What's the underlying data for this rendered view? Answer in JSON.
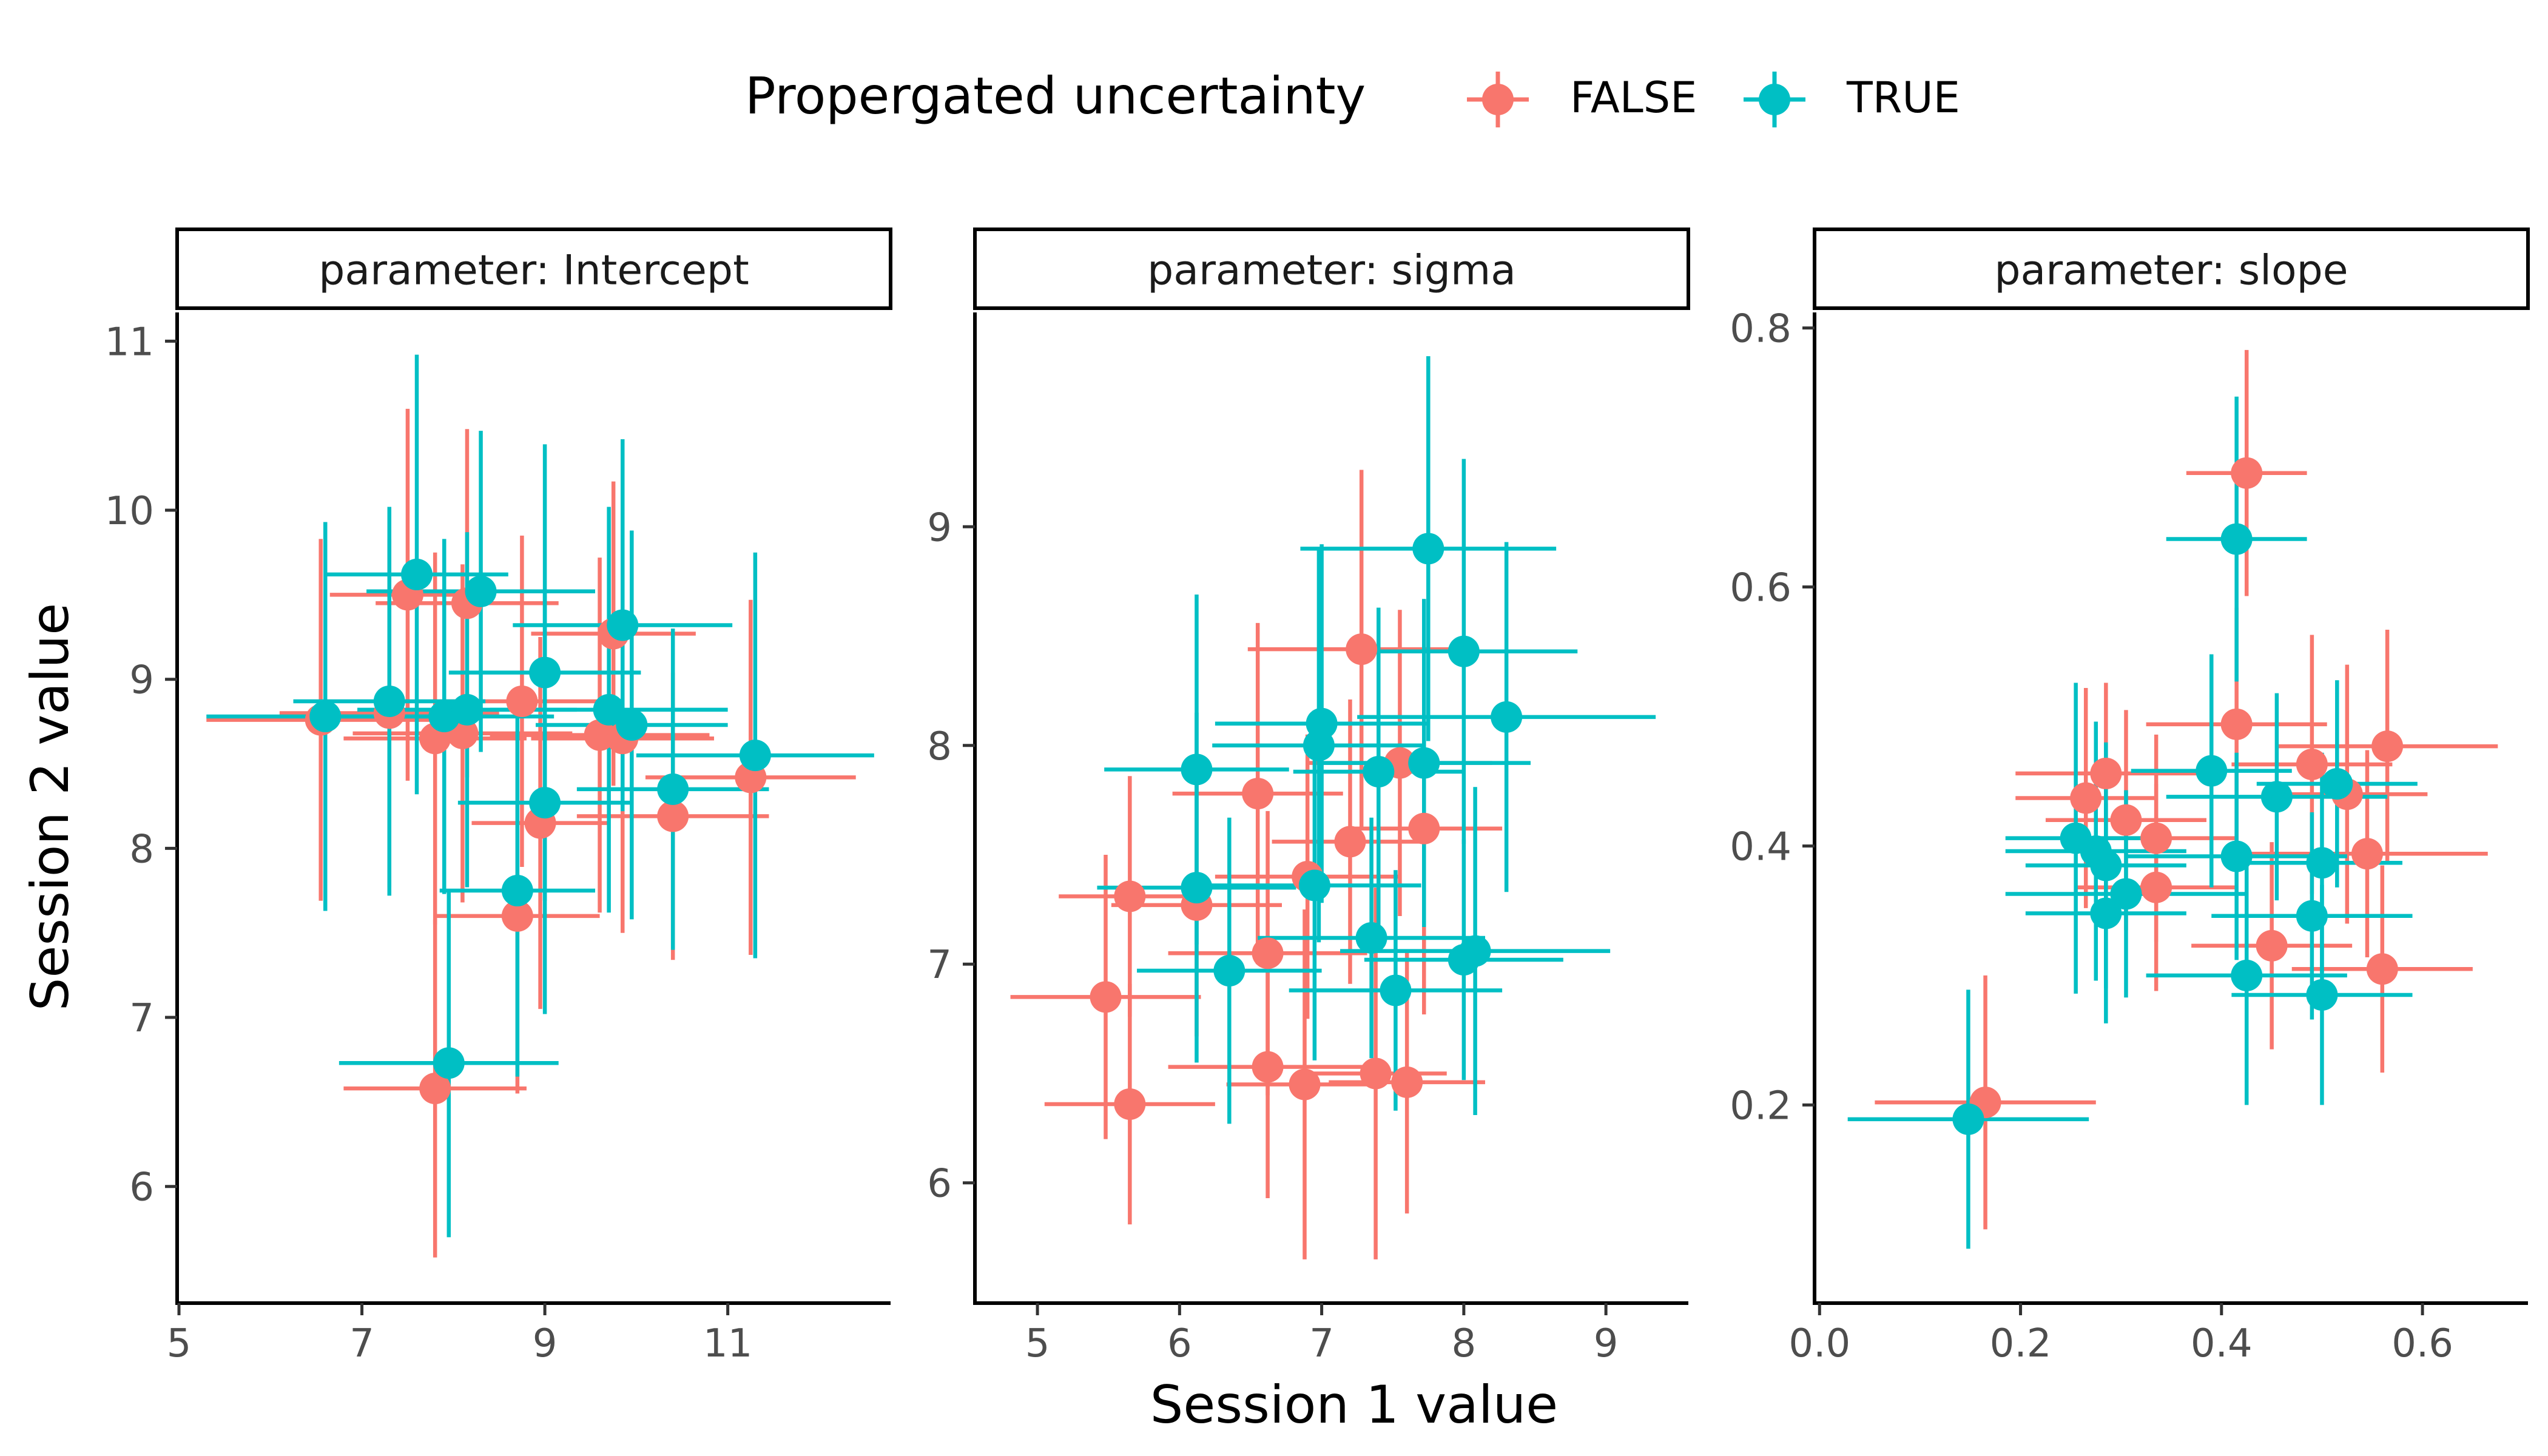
{
  "chart_data": {
    "type": "scatter",
    "legend": {
      "title": "Propergated uncertainty",
      "placement": "top",
      "entries": [
        {
          "label": "FALSE",
          "color": "#F8766D"
        },
        {
          "label": "TRUE",
          "color": "#00BFC4"
        }
      ]
    },
    "xlabel": "Session 1 value",
    "ylabel": "Session 2 value",
    "grid": false,
    "facet_strip_prefix": "parameter: ",
    "panels": [
      {
        "title": "parameter: Intercept",
        "xlim": [
          4.98,
          12.78
        ],
        "ylim": [
          5.31,
          11.17
        ],
        "x_ticks": [
          5,
          7,
          9,
          11
        ],
        "x_tick_labels": [
          "5",
          "7",
          "9",
          "11"
        ],
        "y_ticks": [
          6,
          7,
          8,
          9,
          10,
          11
        ],
        "y_tick_labels": [
          "6",
          "7",
          "8",
          "9",
          "10",
          "11"
        ],
        "series": [
          {
            "name": "FALSE",
            "color": "#F8766D",
            "points": [
              {
                "x": 6.55,
                "y": 8.76,
                "xerr": 1.25,
                "yerr": 1.07
              },
              {
                "x": 7.3,
                "y": 8.8,
                "xerr": 1.2,
                "yerr": 1.03
              },
              {
                "x": 7.5,
                "y": 9.5,
                "xerr": 0.85,
                "yerr": 1.1
              },
              {
                "x": 7.8,
                "y": 8.65,
                "xerr": 1.0,
                "yerr": 1.1
              },
              {
                "x": 8.1,
                "y": 8.68,
                "xerr": 1.2,
                "yerr": 1.0
              },
              {
                "x": 8.15,
                "y": 9.45,
                "xerr": 1.0,
                "yerr": 1.03
              },
              {
                "x": 8.75,
                "y": 8.87,
                "xerr": 0.9,
                "yerr": 0.98
              },
              {
                "x": 8.7,
                "y": 7.6,
                "xerr": 0.9,
                "yerr": 1.05
              },
              {
                "x": 8.95,
                "y": 8.15,
                "xerr": 0.75,
                "yerr": 1.1
              },
              {
                "x": 9.6,
                "y": 8.67,
                "xerr": 1.2,
                "yerr": 1.05
              },
              {
                "x": 9.75,
                "y": 9.27,
                "xerr": 0.9,
                "yerr": 0.9
              },
              {
                "x": 9.85,
                "y": 8.65,
                "xerr": 1.0,
                "yerr": 1.15
              },
              {
                "x": 7.8,
                "y": 6.58,
                "xerr": 1.0,
                "yerr": 1.0
              },
              {
                "x": 10.4,
                "y": 8.19,
                "xerr": 1.05,
                "yerr": 0.85
              },
              {
                "x": 11.25,
                "y": 8.42,
                "xerr": 1.15,
                "yerr": 1.05
              }
            ]
          },
          {
            "name": "TRUE",
            "color": "#00BFC4",
            "points": [
              {
                "x": 6.6,
                "y": 8.78,
                "xerr": 1.3,
                "yerr": 1.15
              },
              {
                "x": 7.3,
                "y": 8.87,
                "xerr": 1.05,
                "yerr": 1.15
              },
              {
                "x": 7.6,
                "y": 9.62,
                "xerr": 1.0,
                "yerr": 1.3
              },
              {
                "x": 7.9,
                "y": 8.78,
                "xerr": 1.2,
                "yerr": 1.05
              },
              {
                "x": 8.15,
                "y": 8.82,
                "xerr": 1.2,
                "yerr": 1.05
              },
              {
                "x": 8.3,
                "y": 9.52,
                "xerr": 1.25,
                "yerr": 0.95
              },
              {
                "x": 9.0,
                "y": 9.04,
                "xerr": 1.05,
                "yerr": 1.35
              },
              {
                "x": 8.7,
                "y": 7.75,
                "xerr": 0.85,
                "yerr": 1.1
              },
              {
                "x": 9.0,
                "y": 8.27,
                "xerr": 0.95,
                "yerr": 1.25
              },
              {
                "x": 9.7,
                "y": 8.82,
                "xerr": 1.3,
                "yerr": 1.2
              },
              {
                "x": 9.85,
                "y": 9.32,
                "xerr": 1.2,
                "yerr": 1.1
              },
              {
                "x": 9.95,
                "y": 8.73,
                "xerr": 1.05,
                "yerr": 1.15
              },
              {
                "x": 7.95,
                "y": 6.73,
                "xerr": 1.2,
                "yerr": 1.03
              },
              {
                "x": 10.4,
                "y": 8.35,
                "xerr": 1.05,
                "yerr": 0.95
              },
              {
                "x": 11.3,
                "y": 8.55,
                "xerr": 1.3,
                "yerr": 1.2
              }
            ]
          }
        ]
      },
      {
        "title": "parameter: sigma",
        "xlim": [
          4.56,
          9.58
        ],
        "ylim": [
          5.45,
          9.98
        ],
        "x_ticks": [
          5,
          6,
          7,
          8,
          9
        ],
        "x_tick_labels": [
          "5",
          "6",
          "7",
          "8",
          "9"
        ],
        "y_ticks": [
          6,
          7,
          8,
          9
        ],
        "y_tick_labels": [
          "6",
          "7",
          "8",
          "9"
        ],
        "series": [
          {
            "name": "FALSE",
            "color": "#F8766D",
            "points": [
              {
                "x": 5.48,
                "y": 6.85,
                "xerr": 0.67,
                "yerr": 0.65
              },
              {
                "x": 5.65,
                "y": 6.36,
                "xerr": 0.6,
                "yerr": 0.55
              },
              {
                "x": 5.65,
                "y": 7.31,
                "xerr": 0.5,
                "yerr": 0.55
              },
              {
                "x": 6.12,
                "y": 7.27,
                "xerr": 0.6,
                "yerr": 0.6
              },
              {
                "x": 6.55,
                "y": 7.78,
                "xerr": 0.6,
                "yerr": 0.78
              },
              {
                "x": 6.62,
                "y": 7.05,
                "xerr": 0.7,
                "yerr": 0.65
              },
              {
                "x": 6.62,
                "y": 6.53,
                "xerr": 0.7,
                "yerr": 0.6
              },
              {
                "x": 6.88,
                "y": 6.45,
                "xerr": 0.55,
                "yerr": 0.8
              },
              {
                "x": 6.9,
                "y": 7.4,
                "xerr": 0.65,
                "yerr": 0.65
              },
              {
                "x": 7.2,
                "y": 7.56,
                "xerr": 0.55,
                "yerr": 0.65
              },
              {
                "x": 7.28,
                "y": 8.44,
                "xerr": 0.8,
                "yerr": 0.82
              },
              {
                "x": 7.38,
                "y": 6.5,
                "xerr": 0.5,
                "yerr": 0.85
              },
              {
                "x": 7.55,
                "y": 7.92,
                "xerr": 0.65,
                "yerr": 0.7
              },
              {
                "x": 7.6,
                "y": 6.46,
                "xerr": 0.55,
                "yerr": 0.6
              },
              {
                "x": 7.72,
                "y": 7.62,
                "xerr": 0.55,
                "yerr": 0.85
              }
            ]
          },
          {
            "name": "TRUE",
            "color": "#00BFC4",
            "points": [
              {
                "x": 6.12,
                "y": 7.35,
                "xerr": 0.7,
                "yerr": 0.8
              },
              {
                "x": 6.12,
                "y": 7.89,
                "xerr": 0.65,
                "yerr": 0.8
              },
              {
                "x": 6.35,
                "y": 6.97,
                "xerr": 0.65,
                "yerr": 0.7
              },
              {
                "x": 6.95,
                "y": 7.36,
                "xerr": 0.75,
                "yerr": 0.8
              },
              {
                "x": 6.98,
                "y": 8.0,
                "xerr": 0.75,
                "yerr": 0.9
              },
              {
                "x": 7.0,
                "y": 8.1,
                "xerr": 0.75,
                "yerr": 0.82
              },
              {
                "x": 7.35,
                "y": 7.12,
                "xerr": 0.8,
                "yerr": 0.55
              },
              {
                "x": 7.4,
                "y": 7.88,
                "xerr": 0.6,
                "yerr": 0.75
              },
              {
                "x": 7.52,
                "y": 6.88,
                "xerr": 0.75,
                "yerr": 0.55
              },
              {
                "x": 7.72,
                "y": 7.92,
                "xerr": 0.75,
                "yerr": 0.75
              },
              {
                "x": 7.75,
                "y": 8.9,
                "xerr": 0.9,
                "yerr": 0.88
              },
              {
                "x": 8.0,
                "y": 8.43,
                "xerr": 0.8,
                "yerr": 0.88
              },
              {
                "x": 8.0,
                "y": 7.02,
                "xerr": 0.7,
                "yerr": 0.55
              },
              {
                "x": 8.08,
                "y": 7.06,
                "xerr": 0.95,
                "yerr": 0.75
              },
              {
                "x": 8.3,
                "y": 8.13,
                "xerr": 1.05,
                "yerr": 0.8
              }
            ]
          }
        ]
      },
      {
        "title": "parameter: slope",
        "xlim": [
          -0.005,
          0.705
        ],
        "ylim": [
          0.047,
          0.812
        ],
        "x_ticks": [
          0.0,
          0.2,
          0.4,
          0.6
        ],
        "x_tick_labels": [
          "0.0",
          "0.2",
          "0.4",
          "0.6"
        ],
        "y_ticks": [
          0.2,
          0.4,
          0.6,
          0.8
        ],
        "y_tick_labels": [
          "0.2",
          "0.4",
          "0.6",
          "0.8"
        ],
        "series": [
          {
            "name": "FALSE",
            "color": "#F8766D",
            "points": [
              {
                "x": 0.165,
                "y": 0.202,
                "xerr": 0.11,
                "yerr": 0.098
              },
              {
                "x": 0.425,
                "y": 0.688,
                "xerr": 0.06,
                "yerr": 0.095
              },
              {
                "x": 0.265,
                "y": 0.437,
                "xerr": 0.07,
                "yerr": 0.085
              },
              {
                "x": 0.285,
                "y": 0.456,
                "xerr": 0.09,
                "yerr": 0.07
              },
              {
                "x": 0.305,
                "y": 0.42,
                "xerr": 0.08,
                "yerr": 0.085
              },
              {
                "x": 0.335,
                "y": 0.406,
                "xerr": 0.08,
                "yerr": 0.08
              },
              {
                "x": 0.335,
                "y": 0.368,
                "xerr": 0.08,
                "yerr": 0.08
              },
              {
                "x": 0.415,
                "y": 0.494,
                "xerr": 0.09,
                "yerr": 0.09
              },
              {
                "x": 0.45,
                "y": 0.323,
                "xerr": 0.08,
                "yerr": 0.08
              },
              {
                "x": 0.49,
                "y": 0.463,
                "xerr": 0.08,
                "yerr": 0.1
              },
              {
                "x": 0.525,
                "y": 0.44,
                "xerr": 0.08,
                "yerr": 0.1
              },
              {
                "x": 0.545,
                "y": 0.394,
                "xerr": 0.12,
                "yerr": 0.08
              },
              {
                "x": 0.565,
                "y": 0.477,
                "xerr": 0.11,
                "yerr": 0.09
              },
              {
                "x": 0.56,
                "y": 0.305,
                "xerr": 0.09,
                "yerr": 0.08
              }
            ]
          },
          {
            "name": "TRUE",
            "color": "#00BFC4",
            "points": [
              {
                "x": 0.148,
                "y": 0.189,
                "xerr": 0.12,
                "yerr": 0.1
              },
              {
                "x": 0.415,
                "y": 0.637,
                "xerr": 0.07,
                "yerr": 0.11
              },
              {
                "x": 0.255,
                "y": 0.406,
                "xerr": 0.07,
                "yerr": 0.12
              },
              {
                "x": 0.275,
                "y": 0.396,
                "xerr": 0.09,
                "yerr": 0.1
              },
              {
                "x": 0.285,
                "y": 0.385,
                "xerr": 0.08,
                "yerr": 0.095
              },
              {
                "x": 0.285,
                "y": 0.348,
                "xerr": 0.08,
                "yerr": 0.085
              },
              {
                "x": 0.305,
                "y": 0.363,
                "xerr": 0.12,
                "yerr": 0.08
              },
              {
                "x": 0.39,
                "y": 0.458,
                "xerr": 0.08,
                "yerr": 0.09
              },
              {
                "x": 0.415,
                "y": 0.392,
                "xerr": 0.11,
                "yerr": 0.08
              },
              {
                "x": 0.425,
                "y": 0.3,
                "xerr": 0.1,
                "yerr": 0.1
              },
              {
                "x": 0.455,
                "y": 0.438,
                "xerr": 0.11,
                "yerr": 0.08
              },
              {
                "x": 0.49,
                "y": 0.346,
                "xerr": 0.1,
                "yerr": 0.08
              },
              {
                "x": 0.5,
                "y": 0.387,
                "xerr": 0.08,
                "yerr": 0.085
              },
              {
                "x": 0.5,
                "y": 0.285,
                "xerr": 0.09,
                "yerr": 0.085
              },
              {
                "x": 0.515,
                "y": 0.448,
                "xerr": 0.08,
                "yerr": 0.08
              }
            ]
          }
        ]
      }
    ]
  }
}
